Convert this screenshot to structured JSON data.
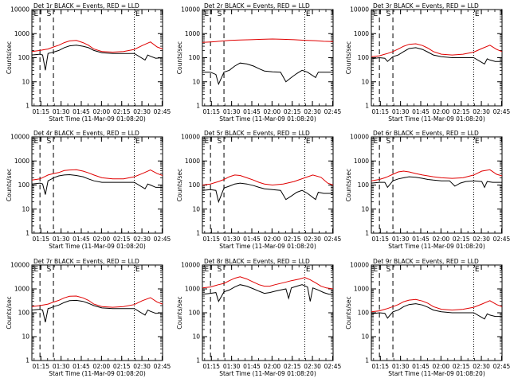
{
  "figure": {
    "xlabel": "Start Time (11-Mar-09 01:08:20)",
    "ylabel": "Counts/sec",
    "xticks": [
      "01:15",
      "01:30",
      "01:45",
      "02:00",
      "02:15",
      "02:30",
      "02:45"
    ],
    "yticks": [
      "1",
      "10",
      "100",
      "1000",
      "10000"
    ]
  },
  "chart_data": [
    {
      "type": "line",
      "title": "Det 1r BLACK = Events, RED = LLD",
      "xlabel": "Start Time (11-Mar-09 01:08:20)",
      "ylabel": "Counts/sec",
      "x_unit": "minutes after 01:08:20",
      "xlim": [
        0,
        97
      ],
      "ylim": [
        1,
        10000
      ],
      "y_scale": "log",
      "grid": false,
      "markers": [
        "E",
        "S",
        "E"
      ],
      "series": [
        {
          "name": "Events",
          "color": "#000000",
          "x": [
            0,
            6,
            8,
            10,
            12,
            14,
            16,
            20,
            24,
            28,
            33,
            38,
            42,
            46,
            52,
            60,
            68,
            76,
            84,
            86,
            88,
            92,
            97
          ],
          "y": [
            130,
            140,
            130,
            30,
            150,
            160,
            170,
            200,
            260,
            310,
            330,
            300,
            260,
            200,
            160,
            150,
            150,
            150,
            80,
            130,
            115,
            95,
            100
          ]
        },
        {
          "name": "LLD",
          "color": "#e00000",
          "x": [
            0,
            6,
            10,
            12,
            16,
            20,
            24,
            28,
            33,
            38,
            42,
            46,
            52,
            60,
            68,
            76,
            82,
            88,
            93,
            97
          ],
          "y": [
            180,
            200,
            220,
            230,
            280,
            330,
            420,
            500,
            520,
            420,
            330,
            230,
            180,
            170,
            180,
            220,
            320,
            450,
            280,
            230
          ]
        }
      ]
    },
    {
      "type": "line",
      "title": "Det 2r BLACK = Events, RED = LLD",
      "xlabel": "Start Time (11-Mar-09 01:08:20)",
      "ylabel": "Counts/sec",
      "x_unit": "minutes after 01:08:20",
      "xlim": [
        0,
        97
      ],
      "ylim": [
        1,
        10000
      ],
      "y_scale": "log",
      "grid": false,
      "markers": [
        "E",
        "S",
        "E"
      ],
      "series": [
        {
          "name": "Events",
          "color": "#000000",
          "x": [
            0,
            6,
            10,
            12,
            16,
            20,
            24,
            28,
            33,
            38,
            42,
            46,
            52,
            58,
            62,
            66,
            70,
            74,
            78,
            84,
            86,
            90,
            97
          ],
          "y": [
            25,
            25,
            20,
            8,
            25,
            30,
            45,
            60,
            55,
            45,
            35,
            28,
            26,
            25,
            10,
            15,
            22,
            30,
            25,
            15,
            25,
            25,
            25
          ]
        },
        {
          "name": "LLD",
          "color": "#e00000",
          "x": [
            0,
            6,
            10,
            12,
            16,
            20,
            28,
            36,
            44,
            52,
            60,
            68,
            76,
            84,
            90,
            97
          ],
          "y": [
            430,
            450,
            470,
            480,
            500,
            520,
            540,
            560,
            580,
            600,
            580,
            560,
            530,
            510,
            480,
            470
          ]
        }
      ]
    },
    {
      "type": "line",
      "title": "Det 3r BLACK = Events, RED = LLD",
      "xlabel": "Start Time (11-Mar-09 01:08:20)",
      "ylabel": "Counts/sec",
      "x_unit": "minutes after 01:08:20",
      "xlim": [
        0,
        97
      ],
      "ylim": [
        1,
        10000
      ],
      "y_scale": "log",
      "grid": false,
      "markers": [
        "E",
        "S",
        "E"
      ],
      "series": [
        {
          "name": "Events",
          "color": "#000000",
          "x": [
            0,
            6,
            10,
            12,
            16,
            20,
            24,
            28,
            33,
            38,
            42,
            46,
            52,
            60,
            68,
            76,
            84,
            86,
            88,
            92,
            97
          ],
          "y": [
            90,
            100,
            95,
            70,
            110,
            130,
            180,
            240,
            260,
            220,
            170,
            130,
            110,
            100,
            100,
            100,
            55,
            90,
            80,
            70,
            70
          ]
        },
        {
          "name": "LLD",
          "color": "#e00000",
          "x": [
            0,
            6,
            10,
            12,
            16,
            20,
            24,
            28,
            33,
            38,
            42,
            46,
            52,
            60,
            68,
            76,
            82,
            88,
            93,
            97
          ],
          "y": [
            110,
            120,
            140,
            150,
            180,
            230,
            300,
            360,
            380,
            320,
            250,
            180,
            140,
            130,
            140,
            170,
            240,
            330,
            220,
            180
          ]
        }
      ]
    },
    {
      "type": "line",
      "title": "Det 4r BLACK = Events, RED = LLD",
      "xlabel": "Start Time (11-Mar-09 01:08:20)",
      "ylabel": "Counts/sec",
      "x_unit": "minutes after 01:08:20",
      "xlim": [
        0,
        97
      ],
      "ylim": [
        1,
        10000
      ],
      "y_scale": "log",
      "grid": false,
      "markers": [
        "E",
        "S",
        "E"
      ],
      "series": [
        {
          "name": "Events",
          "color": "#000000",
          "x": [
            0,
            6,
            8,
            10,
            12,
            14,
            16,
            20,
            24,
            28,
            33,
            38,
            42,
            46,
            52,
            60,
            68,
            76,
            84,
            86,
            88,
            92,
            97
          ],
          "y": [
            110,
            120,
            110,
            40,
            150,
            170,
            200,
            240,
            260,
            270,
            250,
            220,
            180,
            150,
            130,
            130,
            130,
            130,
            70,
            110,
            100,
            80,
            80
          ]
        },
        {
          "name": "LLD",
          "color": "#e00000",
          "x": [
            0,
            6,
            10,
            12,
            16,
            20,
            24,
            28,
            33,
            38,
            42,
            46,
            52,
            60,
            68,
            76,
            82,
            88,
            93,
            97
          ],
          "y": [
            160,
            180,
            230,
            260,
            300,
            330,
            400,
            420,
            430,
            380,
            320,
            260,
            200,
            180,
            180,
            220,
            300,
            420,
            300,
            250
          ]
        }
      ]
    },
    {
      "type": "line",
      "title": "Det 5r BLACK = Events, RED = LLD",
      "xlabel": "Start Time (11-Mar-09 01:08:20)",
      "ylabel": "Counts/sec",
      "x_unit": "minutes after 01:08:20",
      "xlim": [
        0,
        97
      ],
      "ylim": [
        1,
        10000
      ],
      "y_scale": "log",
      "grid": false,
      "markers": [
        "E",
        "S",
        "E"
      ],
      "series": [
        {
          "name": "Events",
          "color": "#000000",
          "x": [
            0,
            6,
            10,
            12,
            16,
            20,
            24,
            28,
            33,
            38,
            42,
            46,
            52,
            58,
            62,
            66,
            70,
            74,
            78,
            84,
            86,
            90,
            97
          ],
          "y": [
            60,
            65,
            60,
            20,
            75,
            90,
            110,
            120,
            110,
            95,
            80,
            70,
            65,
            60,
            25,
            35,
            50,
            60,
            45,
            25,
            50,
            45,
            45
          ]
        },
        {
          "name": "LLD",
          "color": "#e00000",
          "x": [
            0,
            6,
            10,
            12,
            16,
            20,
            24,
            28,
            33,
            38,
            42,
            46,
            52,
            60,
            68,
            76,
            82,
            88,
            93,
            97
          ],
          "y": [
            100,
            110,
            130,
            140,
            170,
            220,
            260,
            250,
            200,
            160,
            130,
            110,
            100,
            110,
            140,
            200,
            260,
            210,
            120,
            100
          ]
        }
      ]
    },
    {
      "type": "line",
      "title": "Det 6r BLACK = Events, RED = LLD",
      "xlabel": "Start Time (11-Mar-09 01:08:20)",
      "ylabel": "Counts/sec",
      "x_unit": "minutes after 01:08:20",
      "xlim": [
        0,
        97
      ],
      "ylim": [
        1,
        10000
      ],
      "y_scale": "log",
      "grid": false,
      "markers": [
        "E",
        "S",
        "E"
      ],
      "series": [
        {
          "name": "Events",
          "color": "#000000",
          "x": [
            0,
            6,
            10,
            12,
            16,
            20,
            24,
            28,
            33,
            38,
            42,
            46,
            52,
            58,
            62,
            66,
            70,
            76,
            82,
            84,
            86,
            90,
            97
          ],
          "y": [
            120,
            130,
            130,
            80,
            150,
            180,
            200,
            220,
            210,
            190,
            170,
            160,
            150,
            150,
            90,
            120,
            140,
            150,
            140,
            80,
            140,
            130,
            130
          ]
        },
        {
          "name": "LLD",
          "color": "#e00000",
          "x": [
            0,
            6,
            10,
            12,
            16,
            20,
            24,
            28,
            33,
            38,
            42,
            46,
            52,
            60,
            68,
            76,
            82,
            88,
            93,
            97
          ],
          "y": [
            150,
            170,
            200,
            220,
            280,
            350,
            380,
            350,
            300,
            260,
            240,
            220,
            200,
            190,
            200,
            260,
            380,
            430,
            280,
            240
          ]
        }
      ]
    },
    {
      "type": "line",
      "title": "Det 7r BLACK = Events, RED = LLD",
      "xlabel": "Start Time (11-Mar-09 01:08:20)",
      "ylabel": "Counts/sec",
      "x_unit": "minutes after 01:08:20",
      "xlim": [
        0,
        97
      ],
      "ylim": [
        1,
        10000
      ],
      "y_scale": "log",
      "grid": false,
      "markers": [
        "E",
        "S",
        "E"
      ],
      "series": [
        {
          "name": "Events",
          "color": "#000000",
          "x": [
            0,
            6,
            8,
            10,
            12,
            14,
            16,
            20,
            24,
            28,
            33,
            38,
            42,
            46,
            52,
            60,
            68,
            76,
            84,
            86,
            88,
            92,
            97
          ],
          "y": [
            130,
            140,
            130,
            40,
            150,
            160,
            180,
            210,
            270,
            320,
            330,
            300,
            250,
            200,
            160,
            150,
            150,
            150,
            80,
            130,
            115,
            95,
            100
          ]
        },
        {
          "name": "LLD",
          "color": "#e00000",
          "x": [
            0,
            6,
            10,
            12,
            16,
            20,
            24,
            28,
            33,
            38,
            42,
            46,
            52,
            60,
            68,
            76,
            82,
            88,
            93,
            97
          ],
          "y": [
            180,
            200,
            220,
            230,
            280,
            330,
            420,
            490,
            500,
            420,
            330,
            230,
            180,
            170,
            180,
            220,
            320,
            430,
            280,
            230
          ]
        }
      ]
    },
    {
      "type": "line",
      "title": "Det 8r BLACK = Events, RED = LLD",
      "xlabel": "Start Time (11-Mar-09 01:08:20)",
      "ylabel": "Counts/sec",
      "x_unit": "minutes after 01:08:20",
      "xlim": [
        0,
        97
      ],
      "ylim": [
        1,
        10000
      ],
      "y_scale": "log",
      "grid": false,
      "markers": [
        "E",
        "S",
        "E"
      ],
      "series": [
        {
          "name": "Events",
          "color": "#000000",
          "x": [
            0,
            6,
            10,
            12,
            16,
            20,
            24,
            28,
            33,
            38,
            42,
            46,
            50,
            54,
            58,
            62,
            64,
            66,
            70,
            74,
            78,
            80,
            82,
            86,
            90,
            94,
            97
          ],
          "y": [
            600,
            650,
            700,
            300,
            750,
            900,
            1200,
            1500,
            1300,
            1000,
            800,
            650,
            700,
            800,
            900,
            1000,
            400,
            1100,
            1300,
            1500,
            1200,
            300,
            1100,
            900,
            700,
            600,
            600
          ]
        },
        {
          "name": "LLD",
          "color": "#e00000",
          "x": [
            0,
            6,
            10,
            12,
            16,
            20,
            24,
            28,
            33,
            38,
            42,
            46,
            50,
            54,
            60,
            66,
            72,
            76,
            80,
            84,
            88,
            92,
            97
          ],
          "y": [
            1100,
            1200,
            1400,
            1500,
            1700,
            2200,
            2800,
            3200,
            2600,
            1900,
            1500,
            1300,
            1300,
            1500,
            1800,
            2200,
            2600,
            3000,
            2400,
            1800,
            1300,
            1100,
            1000
          ]
        }
      ]
    },
    {
      "type": "line",
      "title": "Det 9r BLACK = Events, RED = LLD",
      "xlabel": "Start Time (11-Mar-09 01:08:20)",
      "ylabel": "Counts/sec",
      "x_unit": "minutes after 01:08:20",
      "xlim": [
        0,
        97
      ],
      "ylim": [
        1,
        10000
      ],
      "y_scale": "log",
      "grid": false,
      "markers": [
        "E",
        "S",
        "E"
      ],
      "series": [
        {
          "name": "Events",
          "color": "#000000",
          "x": [
            0,
            6,
            10,
            12,
            16,
            20,
            24,
            28,
            33,
            38,
            42,
            46,
            52,
            60,
            68,
            76,
            84,
            86,
            88,
            92,
            97
          ],
          "y": [
            90,
            100,
            95,
            60,
            110,
            130,
            180,
            220,
            240,
            210,
            170,
            130,
            110,
            100,
            100,
            100,
            55,
            90,
            80,
            70,
            70
          ]
        },
        {
          "name": "LLD",
          "color": "#e00000",
          "x": [
            0,
            6,
            10,
            12,
            16,
            20,
            24,
            28,
            33,
            38,
            42,
            46,
            52,
            60,
            68,
            76,
            82,
            88,
            93,
            97
          ],
          "y": [
            110,
            120,
            140,
            150,
            180,
            220,
            290,
            340,
            360,
            310,
            250,
            180,
            140,
            130,
            140,
            170,
            230,
            320,
            220,
            180
          ]
        }
      ]
    }
  ]
}
